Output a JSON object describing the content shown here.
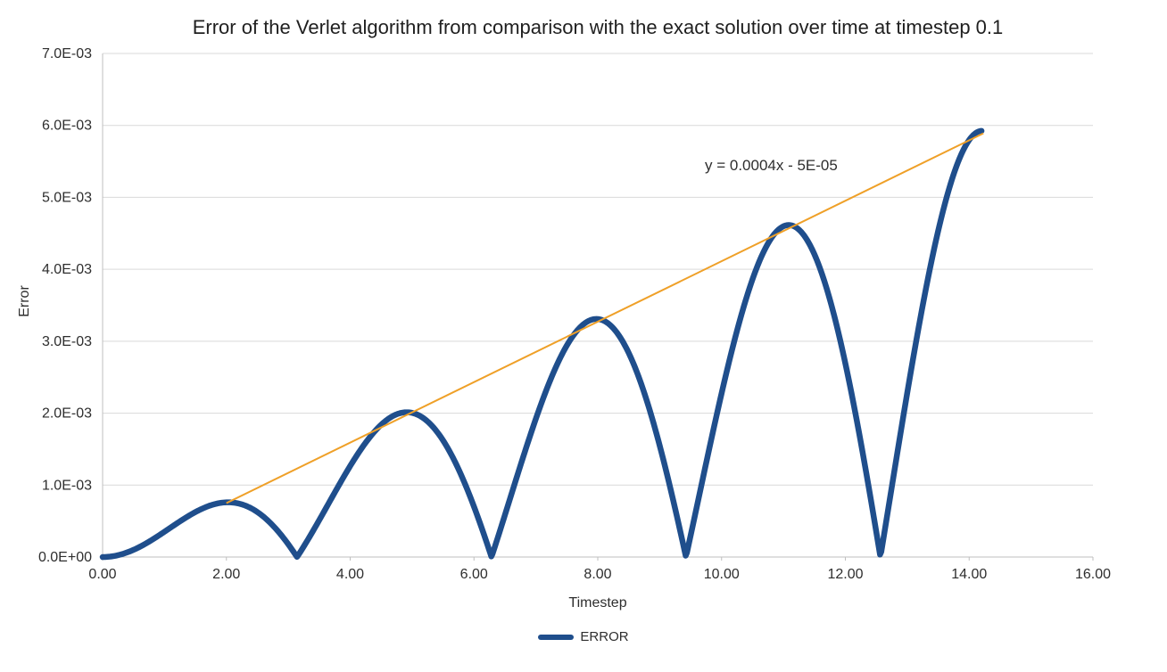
{
  "chart_data": {
    "type": "line",
    "title": "Error of the Verlet algorithm from comparison with the exact solution over time at timestep 0.1",
    "xlabel": "Timestep",
    "ylabel": "Error",
    "xlim": [
      0,
      16
    ],
    "ylim": [
      0,
      0.007
    ],
    "grid": "horizontal",
    "colors": {
      "grid": "#d9d9d9",
      "axis": "#bfbfbf",
      "tick_text": "#2e2e2e"
    },
    "x_ticks": {
      "values": [
        0,
        2,
        4,
        6,
        8,
        10,
        12,
        14,
        16
      ],
      "labels": [
        "0.00",
        "2.00",
        "4.00",
        "6.00",
        "8.00",
        "10.00",
        "12.00",
        "14.00",
        "16.00"
      ]
    },
    "y_ticks": {
      "values": [
        0,
        0.001,
        0.002,
        0.003,
        0.004,
        0.005,
        0.006,
        0.007
      ],
      "labels": [
        "0.0E+00",
        "1.0E-03",
        "2.0E-03",
        "3.0E-03",
        "4.0E-03",
        "5.0E-03",
        "6.0E-03",
        "7.0E-03"
      ]
    },
    "series": [
      {
        "name": "ERROR",
        "color": "#1f4e8c",
        "line_width": 6.5,
        "model": {
          "description": "y = coef * t * |sin(t)|",
          "coef": 0.000418,
          "t_start": 0,
          "t_end": 14.21,
          "t_step": 0.02
        },
        "key_points": {
          "peaks": [
            [
              2.03,
              0.00075
            ],
            [
              4.91,
              0.002
            ],
            [
              7.92,
              0.0033
            ],
            [
              11.08,
              0.0046
            ],
            [
              14.17,
              0.0059
            ]
          ],
          "minima": [
            [
              3.14,
              0.0
            ],
            [
              6.28,
              5e-05
            ],
            [
              9.42,
              7e-05
            ],
            [
              12.57,
              0.0002
            ]
          ]
        }
      }
    ],
    "trendline": {
      "label": "y = 0.0004x - 5E-05",
      "slope": 0.0004,
      "intercept": -5e-05,
      "color": "#efa028",
      "line_width": 2,
      "start": [
        2.0,
        0.00075
      ],
      "end": [
        14.23,
        0.00589
      ]
    },
    "legend": {
      "position": "bottom",
      "entries": [
        {
          "label": "ERROR",
          "color": "#1f4e8c"
        }
      ]
    }
  }
}
